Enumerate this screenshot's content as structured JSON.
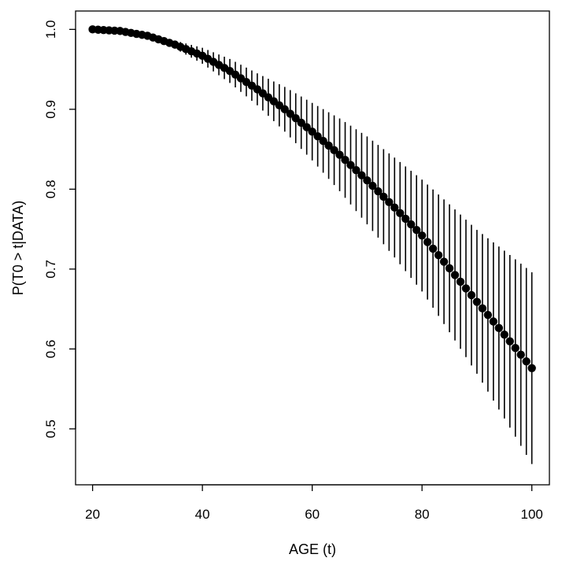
{
  "chart_data": {
    "type": "scatter",
    "title": "",
    "xlabel": "AGE (t)",
    "ylabel": "P(T0 > t|DATA)",
    "xlim": [
      16.9,
      103.2
    ],
    "ylim": [
      0.43,
      1.023
    ],
    "xticks": [
      20,
      40,
      60,
      80,
      100
    ],
    "yticks": [
      0.5,
      0.6,
      0.7,
      0.8,
      0.9,
      1.0
    ],
    "xtick_labels": [
      "20",
      "40",
      "60",
      "80",
      "100"
    ],
    "ytick_labels": [
      "0.5",
      "0.6",
      "0.7",
      "0.8",
      "0.9",
      "1.0"
    ],
    "grid": false,
    "legend": "none",
    "error_bars": true,
    "x_range": [
      20,
      100
    ],
    "x_step": 1,
    "curve_knots": {
      "x": [
        20,
        25,
        30,
        35,
        40,
        45,
        50,
        55,
        60,
        65,
        70,
        75,
        80,
        85,
        90,
        95,
        100
      ],
      "y": [
        1.0,
        0.998,
        0.992,
        0.981,
        0.967,
        0.948,
        0.925,
        0.9,
        0.872,
        0.843,
        0.811,
        0.777,
        0.742,
        0.701,
        0.659,
        0.618,
        0.576
      ]
    },
    "interval_halfwidth_knots": {
      "x": [
        20,
        30,
        35,
        40,
        50,
        60,
        70,
        80,
        90,
        100
      ],
      "y": [
        0.0,
        0.0,
        0.005,
        0.01,
        0.02,
        0.036,
        0.055,
        0.07,
        0.09,
        0.12
      ]
    },
    "colors": {
      "points": "#000000",
      "bars": "#000000",
      "axes": "#000000"
    }
  }
}
